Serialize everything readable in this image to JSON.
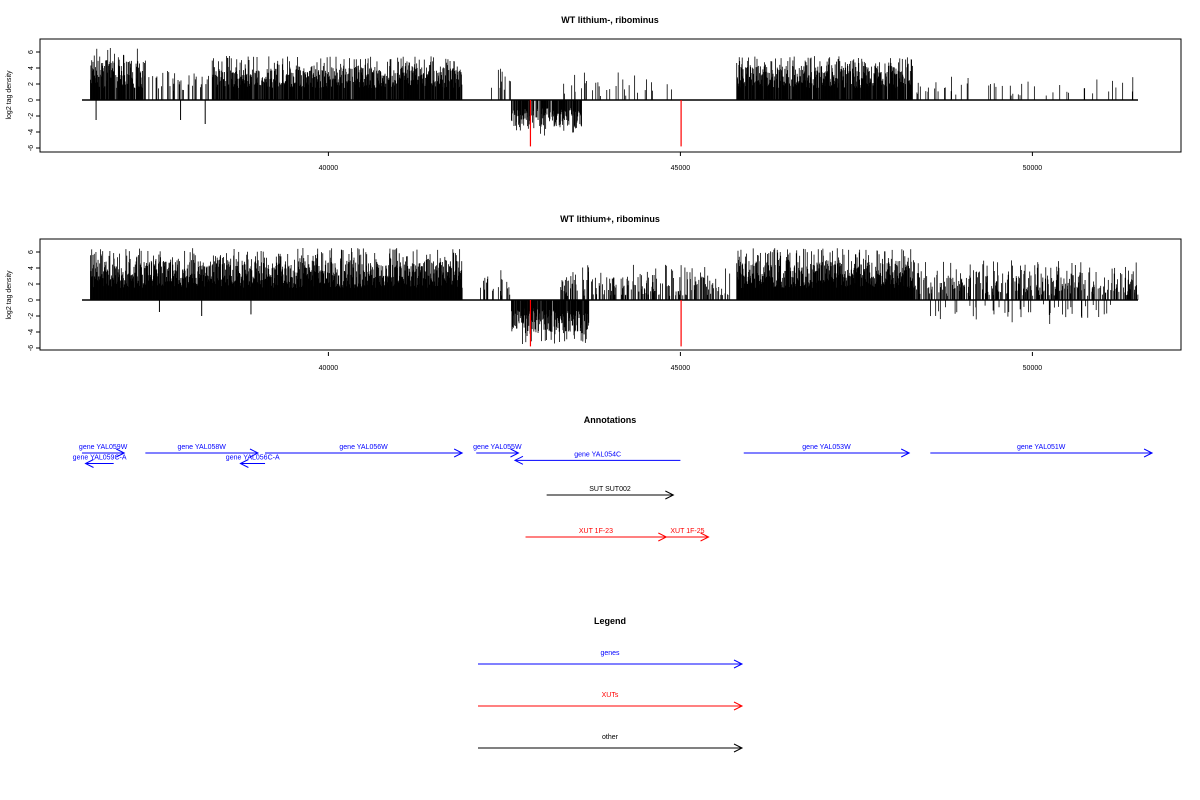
{
  "chart_data": [
    {
      "type": "bar",
      "title": "WT lithium-, ribominus",
      "ylabel": "log2 tag density",
      "xlim": [
        36500,
        51500
      ],
      "ylim": [
        -6,
        7
      ],
      "yticks": [
        -6,
        -4,
        -2,
        0,
        2,
        4,
        6
      ],
      "xticks": [
        40000,
        45000,
        50000
      ],
      "bar_color": "#000000",
      "highlight_color": "#ff0000",
      "regions": [
        {
          "from": 36620,
          "to": 37400,
          "min": 1.5,
          "max": 6.5,
          "density": 0.9
        },
        {
          "from": 37450,
          "to": 38300,
          "min": 1.0,
          "max": 4.0,
          "density": 0.25
        },
        {
          "from": 38350,
          "to": 41900,
          "min": 1.5,
          "max": 5.5,
          "density": 0.85
        },
        {
          "from": 42300,
          "to": 42600,
          "min": 0.5,
          "max": 4.0,
          "density": 0.2
        },
        {
          "from": 43300,
          "to": 45000,
          "min": 0.5,
          "max": 3.5,
          "density": 0.12
        },
        {
          "from": 45800,
          "to": 48300,
          "min": 1.5,
          "max": 5.5,
          "density": 0.9
        },
        {
          "from": 48300,
          "to": 51500,
          "min": 0.5,
          "max": 3.0,
          "density": 0.08
        }
      ],
      "negative_regions": [
        {
          "from": 42600,
          "to": 43600,
          "min": 1.0,
          "max": 4.5,
          "density": 0.8
        }
      ],
      "isolated_negative": [
        {
          "x": 36700,
          "y": -2.5
        },
        {
          "x": 37900,
          "y": -2.5
        },
        {
          "x": 38250,
          "y": -3.0
        }
      ],
      "highlight_bars": [
        {
          "x": 42870,
          "y": -5.8
        },
        {
          "x": 45010,
          "y": -5.8
        }
      ]
    },
    {
      "type": "bar",
      "title": "WT lithium+, ribominus",
      "ylabel": "log2 tag density",
      "xlim": [
        36500,
        51500
      ],
      "ylim": [
        -6,
        7
      ],
      "yticks": [
        -6,
        -4,
        -2,
        0,
        2,
        4,
        6
      ],
      "xticks": [
        40000,
        45000,
        50000
      ],
      "bar_color": "#000000",
      "highlight_color": "#ff0000",
      "regions": [
        {
          "from": 36620,
          "to": 41900,
          "min": 1.5,
          "max": 6.5,
          "density": 1.0
        },
        {
          "from": 42150,
          "to": 42600,
          "min": 0.5,
          "max": 4.0,
          "density": 0.35
        },
        {
          "from": 43300,
          "to": 45700,
          "min": 0.5,
          "max": 4.5,
          "density": 0.35
        },
        {
          "from": 45800,
          "to": 48300,
          "min": 1.5,
          "max": 6.5,
          "density": 1.0
        },
        {
          "from": 48300,
          "to": 51500,
          "min": 0.5,
          "max": 5.0,
          "density": 0.5
        }
      ],
      "negative_regions": [
        {
          "from": 42600,
          "to": 43700,
          "min": 1.0,
          "max": 5.5,
          "density": 0.9
        },
        {
          "from": 48500,
          "to": 51300,
          "min": 0.5,
          "max": 3.0,
          "density": 0.08
        }
      ],
      "isolated_negative": [
        {
          "x": 37600,
          "y": -1.5
        },
        {
          "x": 38200,
          "y": -2.0
        },
        {
          "x": 38900,
          "y": -1.8
        }
      ],
      "highlight_bars": [
        {
          "x": 42870,
          "y": -5.8
        },
        {
          "x": 45010,
          "y": -5.8
        }
      ]
    }
  ],
  "annotations": {
    "title": "Annotations",
    "xlim": [
      36500,
      51500
    ],
    "features": [
      {
        "label": "gene YAL059W",
        "start": 36500,
        "end": 37100,
        "dir": "+",
        "color": "#0000ff",
        "row": 0
      },
      {
        "label": "gene YAL059C-A",
        "start": 36550,
        "end": 36950,
        "dir": "-",
        "color": "#0000ff",
        "row": 0.5
      },
      {
        "label": "gene YAL058W",
        "start": 37400,
        "end": 39000,
        "dir": "+",
        "color": "#0000ff",
        "row": 0
      },
      {
        "label": "gene YAL056C-A",
        "start": 38750,
        "end": 39100,
        "dir": "-",
        "color": "#0000ff",
        "row": 0.5
      },
      {
        "label": "gene YAL056W",
        "start": 39100,
        "end": 41900,
        "dir": "+",
        "color": "#0000ff",
        "row": 0
      },
      {
        "label": "gene YAL055W",
        "start": 42100,
        "end": 42700,
        "dir": "+",
        "color": "#0000ff",
        "row": 0
      },
      {
        "label": "gene YAL054C",
        "start": 42650,
        "end": 45000,
        "dir": "-",
        "color": "#0000ff",
        "row": 0.35
      },
      {
        "label": "gene YAL053W",
        "start": 45900,
        "end": 48250,
        "dir": "+",
        "color": "#0000ff",
        "row": 0
      },
      {
        "label": "gene YAL051W",
        "start": 48550,
        "end": 51700,
        "dir": "+",
        "color": "#0000ff",
        "row": 0
      },
      {
        "label": "SUT SUT002",
        "start": 43100,
        "end": 44900,
        "dir": "+",
        "color": "#000000",
        "row": 2
      },
      {
        "label": "XUT 1F-23",
        "start": 42800,
        "end": 44800,
        "dir": "+",
        "color": "#ff0000",
        "row": 4
      },
      {
        "label": "XUT 1F-25",
        "start": 44800,
        "end": 45400,
        "dir": "+",
        "color": "#ff0000",
        "row": 4
      }
    ]
  },
  "legend": {
    "title": "Legend",
    "items": [
      {
        "label": "genes",
        "color": "#0000ff"
      },
      {
        "label": "XUTs",
        "color": "#ff0000"
      },
      {
        "label": "other",
        "color": "#000000"
      }
    ]
  }
}
